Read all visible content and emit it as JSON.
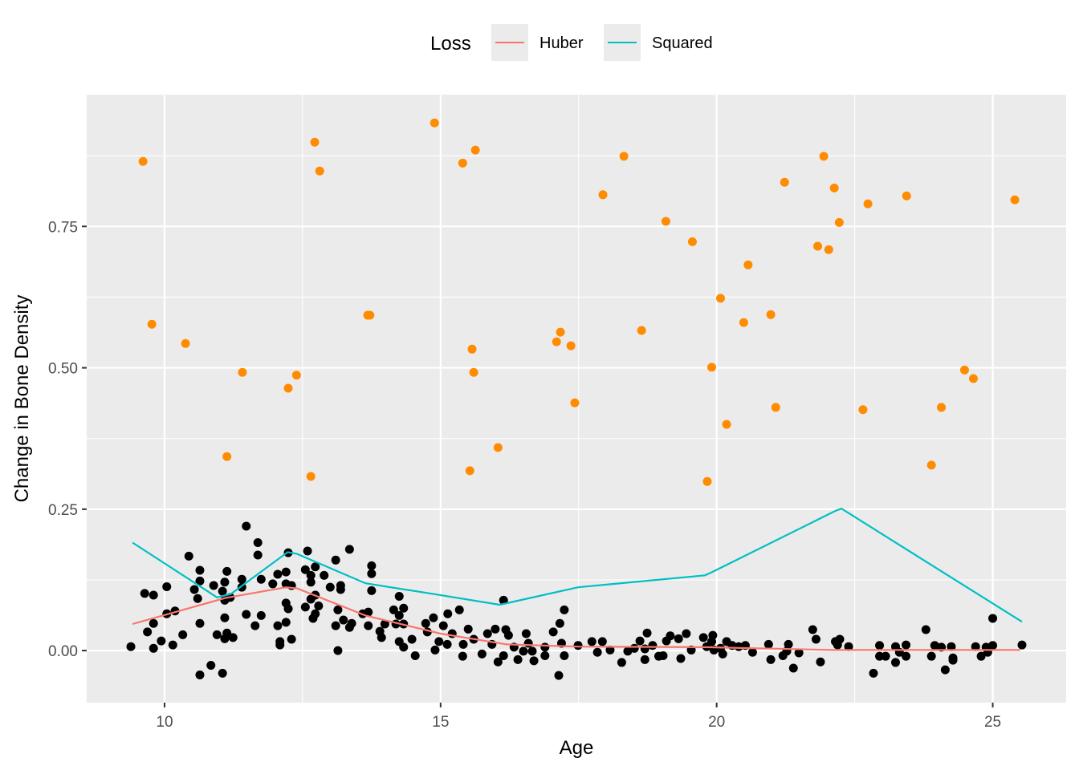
{
  "chart_data": {
    "type": "scatter",
    "title": "",
    "xlabel": "Age",
    "ylabel": "Change in Bone Density",
    "xlim": [
      8.59,
      26.33
    ],
    "ylim": [
      -0.092,
      0.983
    ],
    "xticks": [
      10,
      15,
      20,
      25
    ],
    "xtick_labels": [
      "10",
      "15",
      "20",
      "25"
    ],
    "yticks": [
      0,
      0.25,
      0.5,
      0.75
    ],
    "ytick_labels": [
      "0.00",
      "0.25",
      "0.50",
      "0.75"
    ],
    "grid": true,
    "legend": {
      "title": "Loss",
      "placement": "top",
      "entries": [
        "Huber",
        "Squared"
      ]
    },
    "colors": {
      "Huber": "#F8766D",
      "Squared": "#00BFC4",
      "outliers": "#FF8C00",
      "points": "#000000",
      "panel": "#EBEBEB"
    },
    "lines": [
      {
        "name": "Huber",
        "x": [
          9.42,
          11.1,
          12.2,
          12.4,
          13.64,
          15.0,
          16.2,
          17.5,
          19.8,
          22.1,
          25.5
        ],
        "y": [
          0.047,
          0.093,
          0.112,
          0.11,
          0.062,
          0.03,
          0.011,
          0.007,
          0.006,
          0.001,
          0.001
        ]
      },
      {
        "name": "Squared",
        "x": [
          9.42,
          10.95,
          11.2,
          12.23,
          12.4,
          13.64,
          14.87,
          16.07,
          17.49,
          19.79,
          19.9,
          22.15,
          22.26,
          25.53
        ],
        "y": [
          0.191,
          0.094,
          0.1,
          0.174,
          0.171,
          0.119,
          0.1,
          0.081,
          0.112,
          0.133,
          0.138,
          0.247,
          0.251,
          0.051
        ]
      }
    ],
    "outliers": {
      "x": [
        9.61,
        9.77,
        10.38,
        11.13,
        11.41,
        12.24,
        12.39,
        12.65,
        12.72,
        12.81,
        13.68,
        13.72,
        14.89,
        15.4,
        15.63,
        15.53,
        15.57,
        15.6,
        16.04,
        17.1,
        17.17,
        17.36,
        17.43,
        17.94,
        18.32,
        18.64,
        19.08,
        19.56,
        19.83,
        19.91,
        20.07,
        20.18,
        20.49,
        20.57,
        20.98,
        21.07,
        21.23,
        21.83,
        21.94,
        22.03,
        22.13,
        22.22,
        22.65,
        22.74,
        23.44,
        23.89,
        24.07,
        24.49,
        24.65,
        25.4
      ],
      "y": [
        0.865,
        0.577,
        0.543,
        0.343,
        0.492,
        0.464,
        0.487,
        0.308,
        0.899,
        0.848,
        0.593,
        0.593,
        0.933,
        0.862,
        0.885,
        0.318,
        0.533,
        0.492,
        0.359,
        0.546,
        0.563,
        0.539,
        0.438,
        0.806,
        0.874,
        0.566,
        0.759,
        0.723,
        0.299,
        0.501,
        0.623,
        0.4,
        0.58,
        0.682,
        0.594,
        0.43,
        0.828,
        0.715,
        0.874,
        0.709,
        0.818,
        0.757,
        0.426,
        0.79,
        0.804,
        0.328,
        0.43,
        0.496,
        0.481,
        0.797
      ]
    },
    "points": {
      "x": [
        9.39,
        9.64,
        9.8,
        10.04,
        10.44,
        10.64,
        10.64,
        10.54,
        10.6,
        10.89,
        11.09,
        11.13,
        11.05,
        11.09,
        11.19,
        11.4,
        11.4,
        11.48,
        11.69,
        11.69,
        11.75,
        11.96,
        12.05,
        12.2,
        12.24,
        12.2,
        12.3,
        12.2,
        12.24,
        12.2,
        12.05,
        12.09,
        12.09,
        12.3,
        12.55,
        12.59,
        12.73,
        12.65,
        12.65,
        12.89,
        13.1,
        13.35,
        12.55,
        12.73,
        12.65,
        12.79,
        12.73,
        12.69,
        13.0,
        13.19,
        13.19,
        13.14,
        13.24,
        13.39,
        13.35,
        13.1,
        13.14,
        13.75,
        13.75,
        13.75,
        13.59,
        13.69,
        13.69,
        13.9,
        13.93,
        10.04,
        9.8,
        9.69,
        9.94,
        9.8,
        10.15,
        10.19,
        10.33,
        10.64,
        11.09,
        10.95,
        11.13,
        11.09,
        11.24,
        11.48,
        11.75,
        11.64,
        10.64,
        10.84,
        11.05,
        13.99,
        14.15,
        14.25,
        14.33,
        14.25,
        14.19,
        14.33,
        14.25,
        14.33,
        14.48,
        14.54,
        14.73,
        14.87,
        14.76,
        14.9,
        15.05,
        14.97,
        15.13,
        15.12,
        15.21,
        15.34,
        15.41,
        15.4,
        15.5,
        15.6,
        15.75,
        15.85,
        15.99,
        15.93,
        16.14,
        16.18,
        16.23,
        16.14,
        16.04,
        16.33,
        16.4,
        16.55,
        16.59,
        16.5,
        16.66,
        16.69,
        16.89,
        16.89,
        17.04,
        17.16,
        17.24,
        17.19,
        17.24,
        17.14,
        17.49,
        17.74,
        17.84,
        17.93,
        18.07,
        18.28,
        18.39,
        18.51,
        18.61,
        18.7,
        18.74,
        18.7,
        18.84,
        18.95,
        19.03,
        19.09,
        19.16,
        19.31,
        19.35,
        19.45,
        19.54,
        19.76,
        19.82,
        19.91,
        19.93,
        19.95,
        20.07,
        20.11,
        20.18,
        20.28,
        20.4,
        20.52,
        20.65,
        20.94,
        20.98,
        21.2,
        21.27,
        21.3,
        21.39,
        21.49,
        21.74,
        21.8,
        21.88,
        22.15,
        22.23,
        22.19,
        22.39,
        22.84,
        22.95,
        22.95,
        23.06,
        23.24,
        23.24,
        23.31,
        23.43,
        23.43,
        23.79,
        23.89,
        23.95,
        24.07,
        24.14,
        24.25,
        24.28,
        24.28,
        24.69,
        24.79,
        24.88,
        24.91,
        25.0,
        25.0,
        25.53
      ],
      "y": [
        0.007,
        0.101,
        0.098,
        0.113,
        0.167,
        0.142,
        0.123,
        0.108,
        0.092,
        0.115,
        0.121,
        0.14,
        0.105,
        0.089,
        0.094,
        0.126,
        0.112,
        0.22,
        0.191,
        0.169,
        0.126,
        0.118,
        0.135,
        0.139,
        0.173,
        0.118,
        0.115,
        0.084,
        0.074,
        0.05,
        0.044,
        0.016,
        0.01,
        0.02,
        0.143,
        0.176,
        0.148,
        0.133,
        0.121,
        0.133,
        0.16,
        0.179,
        0.077,
        0.098,
        0.091,
        0.079,
        0.065,
        0.057,
        0.112,
        0.115,
        0.108,
        0.072,
        0.054,
        0.048,
        0.041,
        0.044,
        0.0,
        0.15,
        0.136,
        0.106,
        0.065,
        0.068,
        0.044,
        0.034,
        0.023,
        0.065,
        0.048,
        0.033,
        0.017,
        0.004,
        0.01,
        0.07,
        0.028,
        0.048,
        0.058,
        0.028,
        0.031,
        0.021,
        0.023,
        0.064,
        0.062,
        0.044,
        -0.043,
        -0.026,
        -0.04,
        0.047,
        0.072,
        0.096,
        0.075,
        0.062,
        0.047,
        0.047,
        0.016,
        0.006,
        0.02,
        -0.009,
        0.048,
        0.058,
        0.033,
        0.001,
        0.044,
        0.016,
        0.065,
        0.011,
        0.03,
        0.072,
        0.011,
        -0.01,
        0.038,
        0.02,
        -0.006,
        0.03,
        0.038,
        0.011,
        0.089,
        0.037,
        0.027,
        -0.009,
        -0.02,
        0.006,
        -0.016,
        0.03,
        0.013,
        -0.001,
        -0.001,
        -0.018,
        0.006,
        -0.009,
        0.033,
        0.048,
        0.072,
        0.013,
        -0.009,
        -0.044,
        0.009,
        0.016,
        -0.003,
        0.016,
        0.001,
        -0.021,
        -0.001,
        0.004,
        0.017,
        0.003,
        0.031,
        -0.016,
        0.009,
        -0.01,
        -0.009,
        0.017,
        0.026,
        0.021,
        -0.014,
        0.03,
        0.001,
        0.023,
        0.007,
        0.016,
        0.027,
        0.001,
        0.004,
        -0.006,
        0.016,
        0.009,
        0.007,
        0.009,
        -0.003,
        0.011,
        -0.016,
        -0.009,
        -0.001,
        0.011,
        -0.031,
        -0.004,
        0.037,
        0.02,
        -0.02,
        0.016,
        0.02,
        0.01,
        0.007,
        -0.04,
        0.009,
        -0.01,
        -0.01,
        0.007,
        -0.021,
        -0.003,
        0.01,
        -0.01,
        0.037,
        -0.01,
        0.009,
        0.006,
        -0.034,
        0.007,
        -0.013,
        -0.017,
        0.007,
        -0.01,
        0.006,
        -0.003,
        0.009,
        0.057,
        0.01
      ]
    }
  }
}
